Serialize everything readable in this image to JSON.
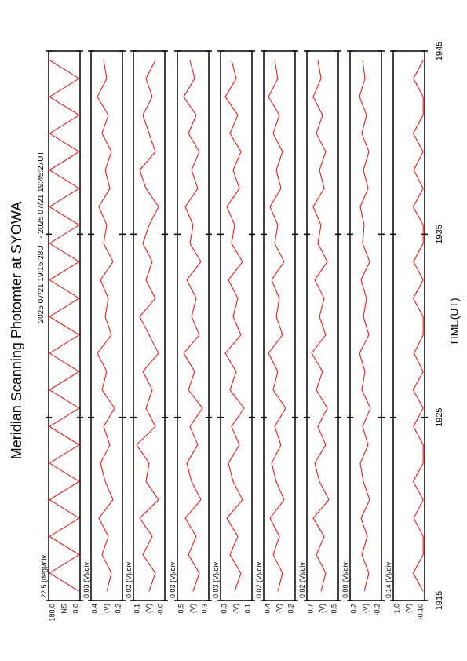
{
  "title": "Meridian Scanning Photomter at SYOWA",
  "range": "2025 07/21 19:15:28UT - 2025 07/21 19:45:27UT",
  "xlabel": "TIME(UT)",
  "xlim": [
    1915,
    1945
  ],
  "xticks": [
    1915,
    1925,
    1935,
    1945
  ],
  "chart_data": [
    {
      "type": "line",
      "scale": "22.5 (deg)/div",
      "ylabel": "NS",
      "ylim": [
        0,
        180
      ],
      "yticks": [
        {
          "value": 180,
          "label": "180.0"
        },
        {
          "value": 0,
          "label": "0.0"
        }
      ],
      "color": "#ff0000",
      "x": [
        1915.5,
        1916.5,
        1917.5,
        1918.5,
        1919.5,
        1920.5,
        1921.5,
        1922.5,
        1923.5,
        1924.5,
        1925.5,
        1926.5,
        1927.5,
        1928.5,
        1929.5,
        1930.5,
        1931.5,
        1932.5,
        1933.5,
        1934.5,
        1935.5,
        1936.5,
        1937.5,
        1938.5,
        1939.5,
        1940.5,
        1941.5,
        1942.5,
        1943.5,
        1944.5
      ],
      "values": [
        5,
        175,
        5,
        175,
        5,
        175,
        5,
        175,
        5,
        175,
        5,
        175,
        5,
        175,
        5,
        175,
        5,
        175,
        5,
        175,
        5,
        175,
        5,
        175,
        5,
        175,
        5,
        175,
        5,
        175
      ]
    },
    {
      "type": "line",
      "scale": "0.03 (V)/div",
      "ylabel": "(V)",
      "ylim": [
        0.2,
        0.4
      ],
      "yticks": [
        0.4,
        0.2
      ],
      "color": "#ff0000",
      "x": [
        1915.5,
        1916.5,
        1917.5,
        1918.5,
        1919.5,
        1920.5,
        1921.5,
        1922.5,
        1923.5,
        1924.5,
        1925.5,
        1926.5,
        1927.5,
        1928.5,
        1929.5,
        1930.5,
        1931.5,
        1932.5,
        1933.5,
        1934.5,
        1935.5,
        1936.5,
        1937.5,
        1938.5,
        1939.5,
        1940.5,
        1941.5,
        1942.5,
        1943.5,
        1944.5
      ],
      "values": [
        0.3,
        0.27,
        0.33,
        0.29,
        0.35,
        0.26,
        0.31,
        0.34,
        0.28,
        0.32,
        0.25,
        0.33,
        0.3,
        0.36,
        0.27,
        0.31,
        0.29,
        0.34,
        0.26,
        0.32,
        0.3,
        0.35,
        0.28,
        0.31,
        0.27,
        0.33,
        0.29,
        0.36,
        0.3,
        0.32
      ]
    },
    {
      "type": "line",
      "scale": "0.02 (V)/div",
      "ylabel": "(V)",
      "ylim": [
        0,
        0.1
      ],
      "yticks": [
        0.1,
        {
          "value": 0,
          "label": "-0.0"
        }
      ],
      "color": "#ff0000",
      "x": [
        1915.5,
        1916.5,
        1917.5,
        1918.5,
        1919.5,
        1920.5,
        1921.5,
        1922.5,
        1923.5,
        1924.5,
        1925.5,
        1926.5,
        1927.5,
        1928.5,
        1929.5,
        1930.5,
        1931.5,
        1932.5,
        1933.5,
        1934.5,
        1935.5,
        1936.5,
        1937.5,
        1938.5,
        1939.5,
        1940.5,
        1941.5,
        1942.5,
        1943.5,
        1944.5
      ],
      "values": [
        0.05,
        0.03,
        0.07,
        0.04,
        0.08,
        0.02,
        0.06,
        0.05,
        0.09,
        0.03,
        0.06,
        0.04,
        0.07,
        0.02,
        0.05,
        0.08,
        0.03,
        0.06,
        0.04,
        0.07,
        0.05,
        0.02,
        0.06,
        0.08,
        0.03,
        0.05,
        0.07,
        0.04,
        0.06,
        0.03
      ]
    },
    {
      "type": "line",
      "scale": "0.03 (V)/div",
      "ylabel": "(V)",
      "ylim": [
        0.3,
        0.5
      ],
      "yticks": [
        0.5,
        0.3
      ],
      "color": "#ff0000",
      "x": [
        1915.5,
        1916.5,
        1917.5,
        1918.5,
        1919.5,
        1920.5,
        1921.5,
        1922.5,
        1923.5,
        1924.5,
        1925.5,
        1926.5,
        1927.5,
        1928.5,
        1929.5,
        1930.5,
        1931.5,
        1932.5,
        1933.5,
        1934.5,
        1935.5,
        1936.5,
        1937.5,
        1938.5,
        1939.5,
        1940.5,
        1941.5,
        1942.5,
        1943.5,
        1944.5
      ],
      "values": [
        0.4,
        0.36,
        0.43,
        0.38,
        0.45,
        0.35,
        0.41,
        0.44,
        0.37,
        0.42,
        0.34,
        0.43,
        0.39,
        0.46,
        0.36,
        0.41,
        0.38,
        0.44,
        0.35,
        0.42,
        0.4,
        0.45,
        0.37,
        0.41,
        0.36,
        0.43,
        0.38,
        0.46,
        0.39,
        0.42
      ]
    },
    {
      "type": "line",
      "scale": "0.03 (V)/div",
      "ylabel": "(V)",
      "ylim": [
        0.1,
        0.3
      ],
      "yticks": [
        0.3,
        0.1
      ],
      "color": "#ff0000",
      "x": [
        1915.5,
        1916.5,
        1917.5,
        1918.5,
        1919.5,
        1920.5,
        1921.5,
        1922.5,
        1923.5,
        1924.5,
        1925.5,
        1926.5,
        1927.5,
        1928.5,
        1929.5,
        1930.5,
        1931.5,
        1932.5,
        1933.5,
        1934.5,
        1935.5,
        1936.5,
        1937.5,
        1938.5,
        1939.5,
        1940.5,
        1941.5,
        1942.5,
        1943.5,
        1944.5
      ],
      "values": [
        0.21,
        0.17,
        0.24,
        0.19,
        0.26,
        0.16,
        0.22,
        0.25,
        0.18,
        0.23,
        0.15,
        0.24,
        0.2,
        0.27,
        0.17,
        0.22,
        0.19,
        0.25,
        0.16,
        0.23,
        0.21,
        0.26,
        0.18,
        0.22,
        0.17,
        0.24,
        0.19,
        0.27,
        0.2,
        0.23
      ]
    },
    {
      "type": "line",
      "scale": "0.02 (V)/div",
      "ylabel": "(V)",
      "ylim": [
        0.2,
        0.4
      ],
      "yticks": [
        0.4,
        0.2
      ],
      "color": "#ff0000",
      "x": [
        1915.5,
        1916.5,
        1917.5,
        1918.5,
        1919.5,
        1920.5,
        1921.5,
        1922.5,
        1923.5,
        1924.5,
        1925.5,
        1926.5,
        1927.5,
        1928.5,
        1929.5,
        1930.5,
        1931.5,
        1932.5,
        1933.5,
        1934.5,
        1935.5,
        1936.5,
        1937.5,
        1938.5,
        1939.5,
        1940.5,
        1941.5,
        1942.5,
        1943.5,
        1944.5
      ],
      "values": [
        0.31,
        0.28,
        0.34,
        0.3,
        0.36,
        0.27,
        0.32,
        0.35,
        0.29,
        0.33,
        0.26,
        0.34,
        0.31,
        0.37,
        0.28,
        0.32,
        0.3,
        0.35,
        0.27,
        0.33,
        0.31,
        0.36,
        0.29,
        0.32,
        0.28,
        0.34,
        0.3,
        0.37,
        0.31,
        0.33
      ]
    },
    {
      "type": "line",
      "scale": "0.02 (V)/div",
      "ylabel": "(V)",
      "ylim": [
        0.5,
        0.7
      ],
      "yticks": [
        0.7,
        0.5
      ],
      "color": "#ff0000",
      "x": [
        1915.5,
        1916.5,
        1917.5,
        1918.5,
        1919.5,
        1920.5,
        1921.5,
        1922.5,
        1923.5,
        1924.5,
        1925.5,
        1926.5,
        1927.5,
        1928.5,
        1929.5,
        1930.5,
        1931.5,
        1932.5,
        1933.5,
        1934.5,
        1935.5,
        1936.5,
        1937.5,
        1938.5,
        1939.5,
        1940.5,
        1941.5,
        1942.5,
        1943.5,
        1944.5
      ],
      "values": [
        0.61,
        0.58,
        0.64,
        0.59,
        0.66,
        0.56,
        0.62,
        0.65,
        0.58,
        0.63,
        0.57,
        0.64,
        0.6,
        0.67,
        0.58,
        0.62,
        0.59,
        0.65,
        0.57,
        0.63,
        0.61,
        0.66,
        0.59,
        0.62,
        0.58,
        0.64,
        0.6,
        0.66,
        0.61,
        0.63
      ]
    },
    {
      "type": "line",
      "scale": "0.00 (V)/div",
      "ylabel": "(V)",
      "ylim": [
        -0.2,
        0.2
      ],
      "yticks": [
        0.2,
        -0.2
      ],
      "color": "#ff0000",
      "x": [
        1915.5,
        1916.5,
        1917.5,
        1918.5,
        1919.5,
        1920.5,
        1921.5,
        1922.5,
        1923.5,
        1924.5,
        1925.5,
        1926.5,
        1927.5,
        1928.5,
        1929.5,
        1930.5,
        1931.5,
        1932.5,
        1933.5,
        1934.5,
        1935.5,
        1936.5,
        1937.5,
        1938.5,
        1939.5,
        1940.5,
        1941.5,
        1942.5,
        1943.5,
        1944.5
      ],
      "values": [
        0.02,
        -0.04,
        0.05,
        -0.02,
        0.06,
        -0.05,
        0.03,
        0.07,
        -0.03,
        0.04,
        -0.06,
        0.05,
        0.01,
        0.08,
        -0.04,
        0.03,
        -0.01,
        0.06,
        -0.05,
        0.04,
        0.02,
        0.07,
        -0.03,
        0.03,
        -0.04,
        0.05,
        -0.01,
        0.08,
        0.01,
        0.04
      ]
    },
    {
      "type": "line",
      "scale": "0.14 (V)/div",
      "ylabel": "(V)",
      "ylim": [
        -0.1,
        1
      ],
      "yticks": [
        {
          "value": 1,
          "label": "1.0"
        },
        {
          "value": -0.1,
          "label": "-0.10"
        }
      ],
      "color": "#ff0000",
      "x": [
        1915.5,
        1916.5,
        1917.5,
        1918.5,
        1919.5,
        1920.5,
        1921.5,
        1922.5,
        1923.5,
        1924.5,
        1925.5,
        1926.5,
        1927.5,
        1928.5,
        1929.5,
        1930.5,
        1931.5,
        1932.5,
        1933.5,
        1934.5,
        1935.5,
        1936.5,
        1937.5,
        1938.5,
        1939.5,
        1940.5,
        1941.5,
        1942.5,
        1943.5,
        1944.5
      ],
      "values": [
        -0.05,
        0.3,
        -0.05,
        -0.05,
        0.28,
        -0.05,
        0.3,
        -0.05,
        -0.05,
        0.29,
        -0.05,
        0.3,
        -0.05,
        0.27,
        -0.05,
        -0.05,
        0.3,
        -0.05,
        0.29,
        -0.05,
        -0.05,
        0.3,
        -0.05,
        0.28,
        -0.05,
        0.3,
        -0.05,
        -0.05,
        0.29,
        -0.05
      ]
    }
  ]
}
